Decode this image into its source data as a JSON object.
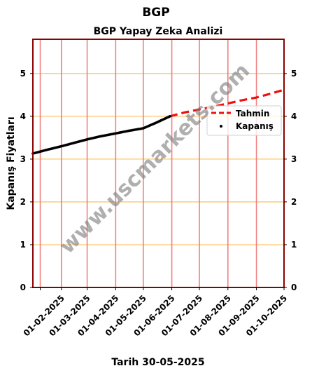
{
  "header": {
    "title": "BGP",
    "subtitle": "BGP Yapay Zeka Analizi"
  },
  "watermark": "www.uscmarkets.com",
  "chart_data": {
    "type": "line",
    "title": "BGP Yapay Zeka Analizi",
    "ylabel": "Kapanış Fiyatları",
    "xlabel": "Tarih 30-05-2025",
    "ylim": [
      0,
      5.8
    ],
    "xlim": [
      "2025-01-01",
      "2025-10-01"
    ],
    "y_ticks": [
      0,
      1,
      2,
      3,
      4,
      5
    ],
    "x_ticks": [
      "2025-01-09",
      "2025-02-01",
      "2025-03-01",
      "2025-04-01",
      "2025-05-01",
      "2025-06-01",
      "2025-07-01",
      "2025-08-01",
      "2025-09-01",
      "2025-10-01"
    ],
    "x_tick_labels": [
      "",
      "01-02-2025",
      "01-03-2025",
      "01-04-2025",
      "01-05-2025",
      "01-06-2025",
      "01-07-2025",
      "01-08-2025",
      "01-09-2025",
      "01-10-2025"
    ],
    "grid": true,
    "legend_position": "right",
    "series": [
      {
        "name": "Kapanış",
        "style": "dots",
        "color": "#000000",
        "x": [
          "2025-01-01",
          "2025-01-15",
          "2025-02-01",
          "2025-02-15",
          "2025-03-01",
          "2025-03-15",
          "2025-04-01",
          "2025-04-15",
          "2025-05-01",
          "2025-05-15",
          "2025-05-30"
        ],
        "y": [
          3.13,
          3.21,
          3.3,
          3.38,
          3.46,
          3.53,
          3.6,
          3.66,
          3.72,
          3.85,
          4.0
        ]
      },
      {
        "name": "Tahmin",
        "style": "dashed",
        "color": "#ee1111",
        "x": [
          "2025-05-30",
          "2025-06-15",
          "2025-07-01",
          "2025-07-15",
          "2025-08-01",
          "2025-08-15",
          "2025-09-01",
          "2025-09-15",
          "2025-10-01"
        ],
        "y": [
          4.0,
          4.09,
          4.16,
          4.22,
          4.3,
          4.37,
          4.44,
          4.52,
          4.62
        ]
      }
    ],
    "colors": {
      "frame": "#8b0000",
      "vgrid": "#f08080",
      "hgrid": "#ffc56b"
    }
  }
}
